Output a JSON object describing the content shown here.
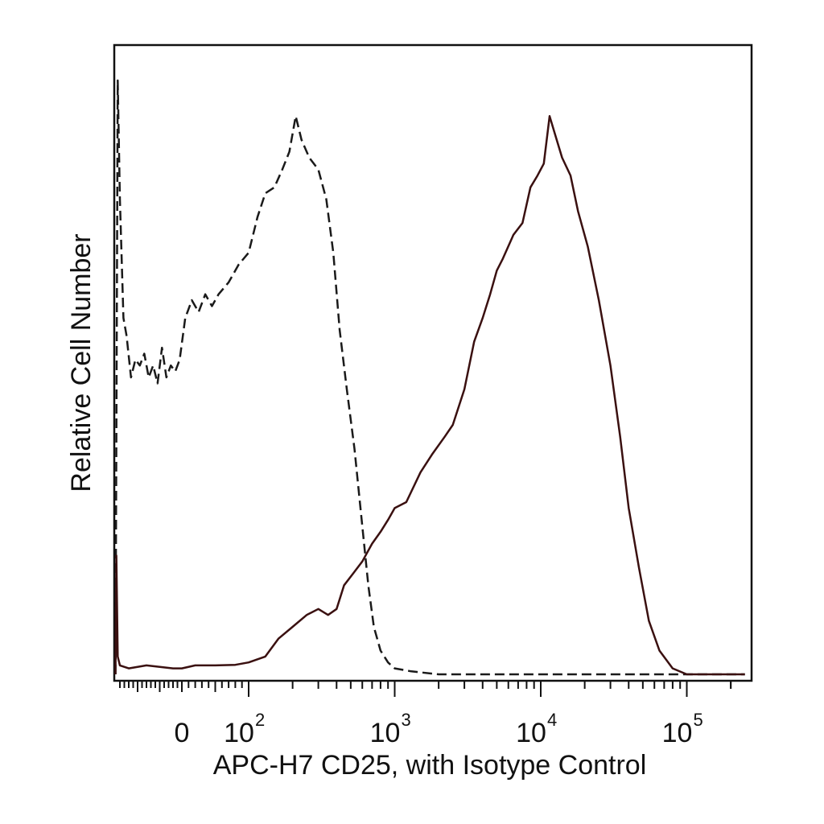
{
  "chart_data": {
    "type": "line",
    "xlabel": "APC-H7 CD25, with Isotype Control",
    "ylabel": "Relative Cell Number",
    "x_scale": "biexponential",
    "xlim": [
      -150,
      250000
    ],
    "ylim": [
      0,
      100
    ],
    "grid": false,
    "legend": "none",
    "x_tick_labels": [
      {
        "value": 0,
        "base": "0",
        "exp": ""
      },
      {
        "value": 100,
        "base": "10",
        "exp": "2"
      },
      {
        "value": 1000,
        "base": "10",
        "exp": "3"
      },
      {
        "value": 10000,
        "base": "10",
        "exp": "4"
      },
      {
        "value": 100000,
        "base": "10",
        "exp": "5"
      }
    ],
    "series": [
      {
        "style": "dashed",
        "color": "#1a1a1a",
        "points": [
          [
            -150,
            0
          ],
          [
            -145,
            100
          ],
          [
            -140,
            80
          ],
          [
            -132,
            60
          ],
          [
            -125,
            57
          ],
          [
            -115,
            50
          ],
          [
            -105,
            53
          ],
          [
            -95,
            52
          ],
          [
            -85,
            54
          ],
          [
            -75,
            50
          ],
          [
            -65,
            52
          ],
          [
            -55,
            49
          ],
          [
            -45,
            55
          ],
          [
            -35,
            50
          ],
          [
            -25,
            52
          ],
          [
            -15,
            51
          ],
          [
            -5,
            53
          ],
          [
            5,
            60
          ],
          [
            15,
            63
          ],
          [
            25,
            61
          ],
          [
            35,
            64
          ],
          [
            45,
            62
          ],
          [
            55,
            64
          ],
          [
            70,
            66
          ],
          [
            85,
            69
          ],
          [
            100,
            71
          ],
          [
            115,
            77
          ],
          [
            130,
            81
          ],
          [
            150,
            82
          ],
          [
            170,
            85
          ],
          [
            190,
            88
          ],
          [
            210,
            94
          ],
          [
            230,
            90
          ],
          [
            260,
            87
          ],
          [
            300,
            85
          ],
          [
            340,
            80
          ],
          [
            380,
            71
          ],
          [
            420,
            58
          ],
          [
            470,
            48
          ],
          [
            530,
            38
          ],
          [
            600,
            25
          ],
          [
            660,
            15
          ],
          [
            720,
            8
          ],
          [
            800,
            4
          ],
          [
            900,
            2
          ],
          [
            1000,
            1
          ],
          [
            1300,
            0.5
          ],
          [
            2000,
            0
          ],
          [
            100000,
            0
          ],
          [
            250000,
            0
          ]
        ]
      },
      {
        "style": "solid",
        "color": "#3a1010",
        "points": [
          [
            -150,
            0
          ],
          [
            -148,
            20
          ],
          [
            -145,
            3
          ],
          [
            -140,
            1.5
          ],
          [
            -120,
            1
          ],
          [
            -80,
            1.5
          ],
          [
            -20,
            1
          ],
          [
            0,
            1
          ],
          [
            20,
            1.5
          ],
          [
            50,
            1.5
          ],
          [
            80,
            1.6
          ],
          [
            100,
            2
          ],
          [
            130,
            3
          ],
          [
            160,
            6
          ],
          [
            200,
            8
          ],
          [
            250,
            10
          ],
          [
            300,
            11
          ],
          [
            350,
            10
          ],
          [
            400,
            11
          ],
          [
            450,
            15
          ],
          [
            520,
            17
          ],
          [
            600,
            19
          ],
          [
            700,
            22
          ],
          [
            800,
            24
          ],
          [
            900,
            26
          ],
          [
            1000,
            28
          ],
          [
            1200,
            29
          ],
          [
            1500,
            34
          ],
          [
            1800,
            37
          ],
          [
            2200,
            40
          ],
          [
            2500,
            42
          ],
          [
            3000,
            48
          ],
          [
            3500,
            56
          ],
          [
            4000,
            60
          ],
          [
            4500,
            64
          ],
          [
            5000,
            68
          ],
          [
            5500,
            70
          ],
          [
            6500,
            74
          ],
          [
            7500,
            76
          ],
          [
            8500,
            82
          ],
          [
            9500,
            84
          ],
          [
            10500,
            86
          ],
          [
            11500,
            94
          ],
          [
            12500,
            91
          ],
          [
            14000,
            87
          ],
          [
            16000,
            84
          ],
          [
            18000,
            78
          ],
          [
            21000,
            72
          ],
          [
            25000,
            63
          ],
          [
            30000,
            52
          ],
          [
            35000,
            40
          ],
          [
            40000,
            28
          ],
          [
            47000,
            18
          ],
          [
            55000,
            9
          ],
          [
            65000,
            4
          ],
          [
            80000,
            1
          ],
          [
            100000,
            0
          ],
          [
            250000,
            0
          ]
        ]
      }
    ]
  }
}
